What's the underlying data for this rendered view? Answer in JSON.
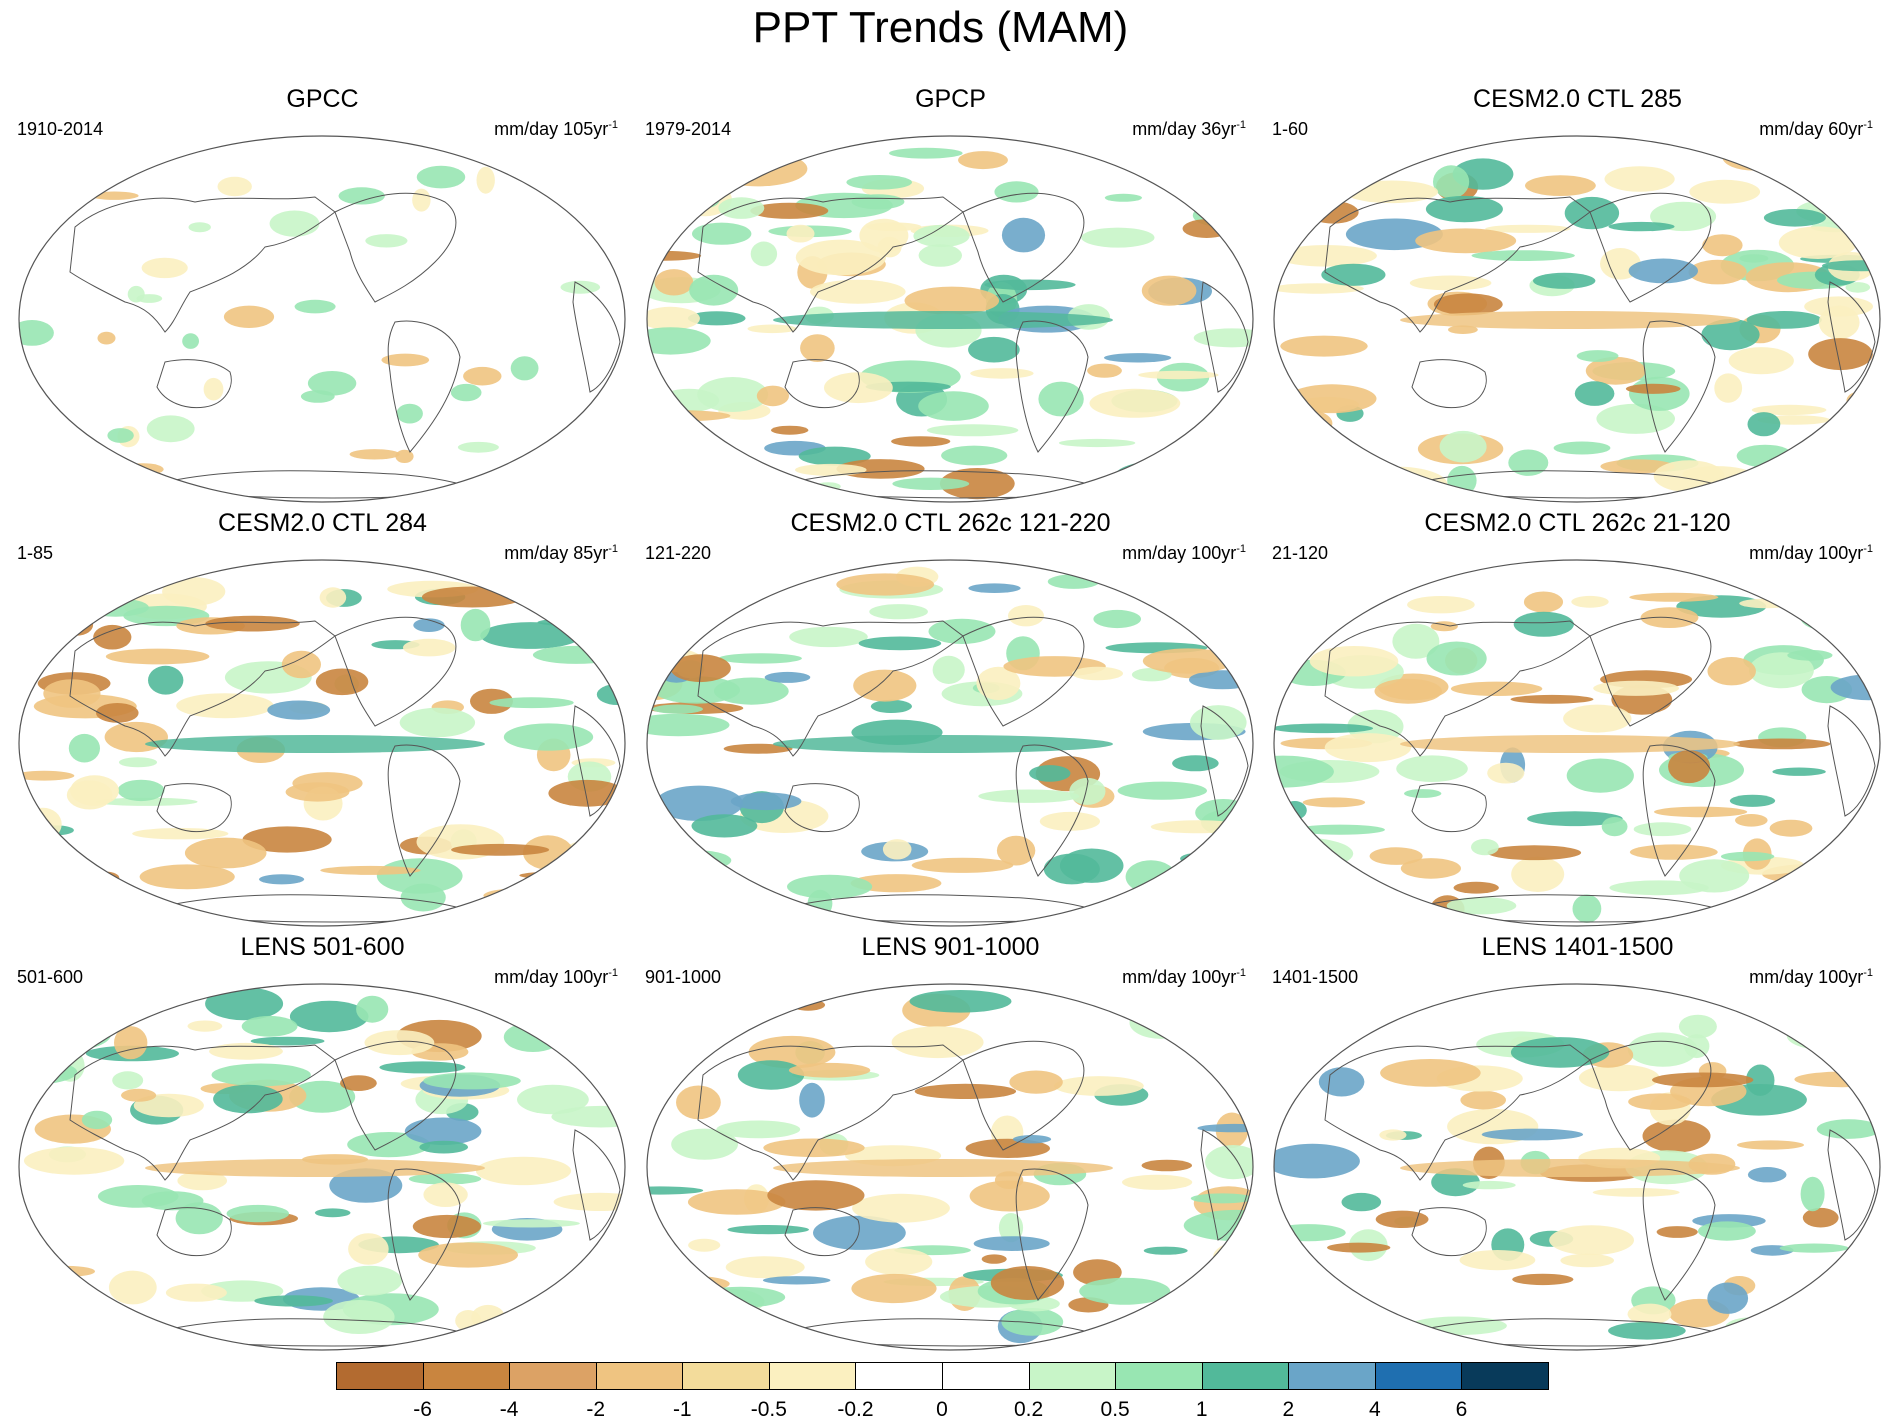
{
  "title": "PPT Trends (MAM)",
  "panels": [
    {
      "title": "GPCC",
      "period": "1910-2014",
      "units": "mm/day 105yr",
      "units_sup": "-1"
    },
    {
      "title": "GPCP",
      "period": "1979-2014",
      "units": "mm/day 36yr",
      "units_sup": "-1"
    },
    {
      "title": "CESM2.0 CTL 285",
      "period": "1-60",
      "units": "mm/day 60yr",
      "units_sup": "-1"
    },
    {
      "title": "CESM2.0 CTL 284",
      "period": "1-85",
      "units": "mm/day 85yr",
      "units_sup": "-1"
    },
    {
      "title": "CESM2.0 CTL 262c 121-220",
      "period": "121-220",
      "units": "mm/day 100yr",
      "units_sup": "-1"
    },
    {
      "title": "CESM2.0 CTL 262c 21-120",
      "period": "21-120",
      "units": "mm/day 100yr",
      "units_sup": "-1"
    },
    {
      "title": "LENS 501-600",
      "period": "501-600",
      "units": "mm/day 100yr",
      "units_sup": "-1"
    },
    {
      "title": "LENS 901-1000",
      "period": "901-1000",
      "units": "mm/day 100yr",
      "units_sup": "-1"
    },
    {
      "title": "LENS 1401-1500",
      "period": "1401-1500",
      "units": "mm/day 100yr",
      "units_sup": "-1"
    }
  ],
  "colorbar": {
    "colors": [
      "#b36b30",
      "#c9853f",
      "#dca265",
      "#efc481",
      "#f3dc9b",
      "#fbf0c0",
      "#ffffff",
      "#ffffff",
      "#c8f5c8",
      "#98e6b2",
      "#52b99a",
      "#6aa5c8",
      "#1f6fb0",
      "#083a5a"
    ],
    "tick_labels": [
      "-6",
      "-4",
      "-2",
      "-1",
      "-0.5",
      "-0.2",
      "0",
      "0.2",
      "0.5",
      "1",
      "2",
      "4",
      "6"
    ]
  },
  "colors": {
    "dry_strong": "#c9853f",
    "dry_mid": "#efc481",
    "dry_weak": "#fbf0c0",
    "wet_weak": "#c8f5c8",
    "wet_mid": "#98e6b2",
    "wet_strong": "#52b99a",
    "wet_blue": "#6aa5c8",
    "coast": "#555555"
  }
}
